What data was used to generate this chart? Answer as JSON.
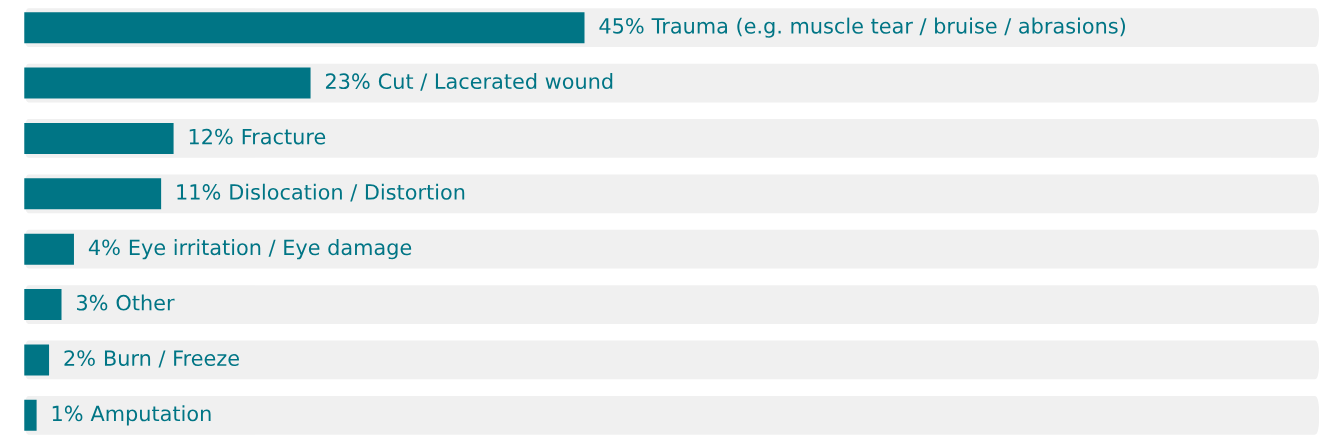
{
  "chart_data": {
    "type": "bar",
    "orientation": "horizontal",
    "categories": [
      "Trauma (e.g. muscle tear / bruise / abrasions)",
      "Cut / Lacerated wound",
      "Fracture",
      "Dislocation / Distortion",
      "Eye irritation / Eye damage",
      "Other",
      "Burn / Freeze",
      "Amputation"
    ],
    "values": [
      45,
      23,
      12,
      11,
      4,
      3,
      2,
      1
    ],
    "value_labels": [
      "45%",
      "23%",
      "12%",
      "11%",
      "4%",
      "3%",
      "2%",
      "1%"
    ],
    "color": "#007585",
    "xlim": [
      0,
      104
    ],
    "tick_labels": false
  }
}
